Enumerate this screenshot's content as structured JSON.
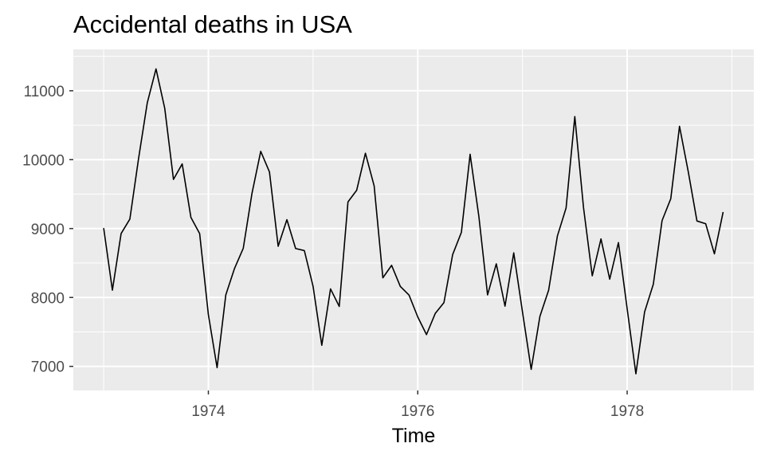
{
  "chart_data": {
    "type": "line",
    "title": "Accidental deaths in USA",
    "xlabel": "Time",
    "ylabel": "",
    "grid": true,
    "x_start": 1973,
    "frequency": 12,
    "xlim": [
      1972.71,
      1979.21
    ],
    "ylim": [
      6650,
      11600
    ],
    "x_ticks": [
      1974,
      1976,
      1978
    ],
    "y_ticks": [
      7000,
      8000,
      9000,
      10000,
      11000
    ],
    "series": [
      {
        "line_color": "#000000",
        "values": [
          9007,
          8106,
          8928,
          9137,
          10017,
          10826,
          11317,
          10744,
          9713,
          9938,
          9161,
          8927,
          7750,
          6981,
          8038,
          8422,
          8714,
          9512,
          10120,
          9823,
          8743,
          9129,
          8710,
          8680,
          8162,
          7306,
          8124,
          7870,
          9387,
          9556,
          10093,
          9620,
          8285,
          8466,
          8160,
          8034,
          7717,
          7461,
          7767,
          7925,
          8623,
          8945,
          10078,
          9179,
          8037,
          8488,
          7874,
          8647,
          7792,
          6957,
          7726,
          8106,
          8890,
          9299,
          10625,
          9302,
          8314,
          8850,
          8265,
          8796,
          7836,
          6892,
          7791,
          8192,
          9115,
          9434,
          10484,
          9827,
          9110,
          9070,
          8633,
          9240
        ]
      }
    ]
  }
}
